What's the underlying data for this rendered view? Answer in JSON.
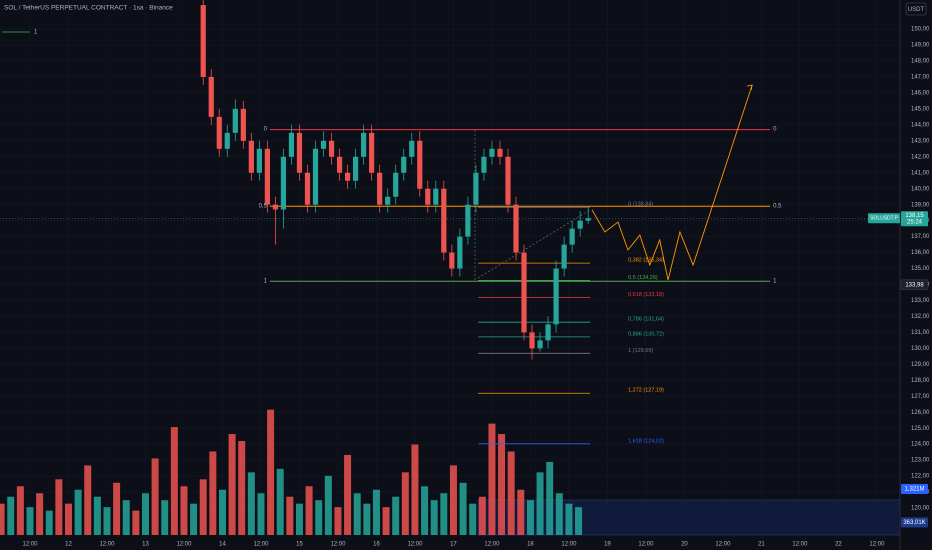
{
  "chart_data": {
    "type": "candlestick",
    "title": "SOL / TetherUS PERPETUAL CONTRACT · 1sa · Binance",
    "legend_label": "1",
    "legend_color": "#4caf50",
    "currency": "USDT",
    "up_color": "#26a69a",
    "down_color": "#ef5350",
    "grid": true,
    "xlim": [
      -9.35,
      271.2
    ],
    "ylim": [
      117.37,
      151.82
    ],
    "volume_ylim": [
      0,
      15.37
    ],
    "xticks": [
      {
        "value": 0,
        "label": "12:00"
      },
      {
        "value": 12,
        "label": "12"
      },
      {
        "value": 24,
        "label": "12:00"
      },
      {
        "value": 36,
        "label": "13"
      },
      {
        "value": 48,
        "label": "12:00"
      },
      {
        "value": 60,
        "label": "14"
      },
      {
        "value": 72,
        "label": "12:00"
      },
      {
        "value": 84,
        "label": "15"
      },
      {
        "value": 96,
        "label": "12:00"
      },
      {
        "value": 108,
        "label": "16"
      },
      {
        "value": 120,
        "label": "12:00"
      },
      {
        "value": 132,
        "label": "17"
      },
      {
        "value": 144,
        "label": "12:00"
      },
      {
        "value": 156,
        "label": "18"
      },
      {
        "value": 168,
        "label": "12:00"
      },
      {
        "value": 180,
        "label": "19"
      },
      {
        "value": 192,
        "label": "12:00"
      },
      {
        "value": 204,
        "label": "20"
      },
      {
        "value": 216,
        "label": "12:00"
      },
      {
        "value": 228,
        "label": "21"
      },
      {
        "value": 240,
        "label": "12:00"
      },
      {
        "value": 252,
        "label": "22"
      },
      {
        "value": 264,
        "label": "12:00"
      }
    ],
    "yticks": [
      {
        "value": 150,
        "label": "150,00"
      },
      {
        "value": 149,
        "label": "149,00"
      },
      {
        "value": 148,
        "label": "148,00"
      },
      {
        "value": 147,
        "label": "147,00"
      },
      {
        "value": 146,
        "label": "146,00"
      },
      {
        "value": 145,
        "label": "145,00"
      },
      {
        "value": 144,
        "label": "144,00"
      },
      {
        "value": 143,
        "label": "143,00"
      },
      {
        "value": 142,
        "label": "142,00"
      },
      {
        "value": 141,
        "label": "141,00"
      },
      {
        "value": 140,
        "label": "140,00"
      },
      {
        "value": 139,
        "label": "139,00"
      },
      {
        "value": 138,
        "label": "138,00"
      },
      {
        "value": 137,
        "label": "137,00"
      },
      {
        "value": 136,
        "label": "136,00"
      },
      {
        "value": 135,
        "label": "135,00"
      },
      {
        "value": 134,
        "label": "134,00"
      },
      {
        "value": 133,
        "label": "133,00"
      },
      {
        "value": 132,
        "label": "132,00"
      },
      {
        "value": 131,
        "label": "131,00"
      },
      {
        "value": 130,
        "label": "130,00"
      },
      {
        "value": 129,
        "label": "129,00"
      },
      {
        "value": 128,
        "label": "128,00"
      },
      {
        "value": 127,
        "label": "127,00"
      },
      {
        "value": 126,
        "label": "126,00"
      },
      {
        "value": 125,
        "label": "125,00"
      },
      {
        "value": 124,
        "label": "124,00"
      },
      {
        "value": 123,
        "label": "123,00"
      },
      {
        "value": 122,
        "label": "122,00"
      },
      {
        "value": 121,
        "label": "121,00"
      },
      {
        "value": 120,
        "label": "120,00"
      }
    ],
    "x": [
      54,
      56.5,
      59,
      61.5,
      64,
      66.5,
      69,
      71.5,
      74,
      76.5,
      79,
      81.5,
      84,
      86.5,
      89,
      91.5,
      94,
      96.5,
      99,
      101.5,
      104,
      106.5,
      109,
      111.5,
      114,
      116.5,
      119,
      121.5,
      124,
      126.5,
      129,
      131.5,
      134,
      136.5,
      139,
      141.5,
      144,
      146.5,
      149,
      151.5,
      154,
      156.5,
      159,
      161.5,
      164,
      166.5,
      169,
      171.5,
      174
    ],
    "open": [
      151.5,
      147,
      144.5,
      142.5,
      143.5,
      145,
      143,
      141,
      142.5,
      139,
      138.7,
      142,
      143.5,
      141,
      139,
      142.5,
      143,
      142,
      141,
      140.5,
      142,
      143.5,
      141,
      139,
      139.5,
      141,
      142,
      143,
      140,
      139,
      140,
      136,
      135,
      137,
      139,
      141,
      142,
      142.5,
      142,
      139,
      136,
      131,
      130,
      130.5,
      131.5,
      135,
      136.5,
      137.5,
      138
    ],
    "high": [
      152,
      147.5,
      145,
      144,
      145.6,
      145.5,
      143.5,
      143,
      143,
      139.5,
      142.5,
      144,
      144,
      141.5,
      143,
      143.6,
      143.5,
      142.5,
      141.5,
      142.5,
      144,
      144,
      141.5,
      140,
      141.5,
      142.5,
      143.5,
      143.6,
      140.5,
      140.5,
      140.5,
      136.5,
      137.5,
      139.5,
      141.5,
      142.5,
      143,
      143,
      142.5,
      139.5,
      136.5,
      131.5,
      131,
      132,
      135.5,
      137,
      138,
      138.6,
      138.8
    ],
    "low": [
      146.5,
      144,
      142,
      142,
      143,
      142.5,
      140.5,
      140.5,
      138.5,
      136.5,
      137.5,
      141.5,
      140.5,
      138.5,
      138.5,
      142,
      141.5,
      140.5,
      140,
      140,
      141.5,
      140.5,
      138.5,
      138.5,
      139,
      140.5,
      141.5,
      139.5,
      138.5,
      138.5,
      135.5,
      134.5,
      134.5,
      136.5,
      138.5,
      140.5,
      141.5,
      141.5,
      138.5,
      135.5,
      130.5,
      129.3,
      129.8,
      130,
      131,
      134.5,
      136,
      137,
      137.8
    ],
    "close": [
      147,
      144.5,
      142.5,
      143.5,
      145,
      143,
      141,
      142.5,
      139,
      138.7,
      142,
      143.5,
      141,
      139,
      142.5,
      143,
      142,
      141,
      140.5,
      142,
      143.5,
      141,
      139,
      139.5,
      141,
      142,
      143,
      140,
      139,
      140,
      136,
      135,
      137,
      139,
      141,
      142,
      142.5,
      142,
      139,
      136,
      131,
      130,
      130.5,
      131.5,
      135,
      136.5,
      137.5,
      138,
      138.15
    ],
    "volume": {
      "x": [
        -9,
        -6,
        -3,
        0,
        3,
        6,
        9,
        12,
        15,
        18,
        21,
        24,
        27,
        30,
        33,
        36,
        39,
        42,
        45,
        48,
        51,
        54,
        57,
        60,
        63,
        66,
        69,
        72,
        75,
        78,
        81,
        84,
        87,
        90,
        93,
        96,
        99,
        102,
        105,
        108,
        111,
        114,
        117,
        120,
        123,
        126,
        129,
        132,
        135,
        138,
        141,
        144,
        147,
        150,
        153,
        156,
        159,
        162,
        165,
        168,
        171
      ],
      "values": [
        0.9,
        1.1,
        1.4,
        0.8,
        1.2,
        0.7,
        1.6,
        0.9,
        1.3,
        2.0,
        1.1,
        0.8,
        1.5,
        1.0,
        0.7,
        1.2,
        2.2,
        1.0,
        3.1,
        1.4,
        0.9,
        1.6,
        2.4,
        1.3,
        2.9,
        2.7,
        1.8,
        1.2,
        3.6,
        1.9,
        1.1,
        0.9,
        1.4,
        1.0,
        1.7,
        0.8,
        2.3,
        1.2,
        0.9,
        1.3,
        0.8,
        1.1,
        1.8,
        2.6,
        1.4,
        1.0,
        1.2,
        2.0,
        1.5,
        0.9,
        1.1,
        3.2,
        2.9,
        2.4,
        1.3,
        1.0,
        1.8,
        2.1,
        1.2,
        0.9,
        0.8
      ],
      "colors": [
        "#ef5350",
        "#26a69a",
        "#ef5350",
        "#26a69a",
        "#ef5350",
        "#26a69a",
        "#ef5350",
        "#ef5350",
        "#26a69a",
        "#ef5350",
        "#26a69a",
        "#26a69a",
        "#ef5350",
        "#26a69a",
        "#ef5350",
        "#26a69a",
        "#ef5350",
        "#26a69a",
        "#ef5350",
        "#ef5350",
        "#26a69a",
        "#ef5350",
        "#ef5350",
        "#26a69a",
        "#ef5350",
        "#ef5350",
        "#26a69a",
        "#26a69a",
        "#ef5350",
        "#26a69a",
        "#ef5350",
        "#26a69a",
        "#ef5350",
        "#26a69a",
        "#26a69a",
        "#ef5350",
        "#ef5350",
        "#26a69a",
        "#26a69a",
        "#26a69a",
        "#ef5350",
        "#26a69a",
        "#ef5350",
        "#ef5350",
        "#26a69a",
        "#26a69a",
        "#26a69a",
        "#ef5350",
        "#26a69a",
        "#26a69a",
        "#ef5350",
        "#ef5350",
        "#ef5350",
        "#ef5350",
        "#ef5350",
        "#26a69a",
        "#26a69a",
        "#26a69a",
        "#26a69a",
        "#26a69a",
        "#26a69a"
      ]
    },
    "levels": [
      {
        "labels": [
          "0",
          "0"
        ],
        "price": 143.7,
        "color": "#f23645",
        "x": [
          74.8,
          230.7
        ]
      },
      {
        "labels": [
          "0,5",
          "0,5"
        ],
        "price": 138.9,
        "color": "#ff9800",
        "x": [
          74.8,
          230.7
        ]
      },
      {
        "labels": [
          "1",
          "1"
        ],
        "price": 134.2,
        "color": "#4caf50",
        "x": [
          74.8,
          230.7
        ]
      }
    ],
    "fib": {
      "x": [
        139.7,
        174.6
      ],
      "levels": [
        {
          "label": "0 (138,84)",
          "price": 138.84,
          "color": "#787b86"
        },
        {
          "label": "0,382 (135,34)",
          "price": 135.34,
          "color": "#ff9800"
        },
        {
          "label": "0,5 (134,26)",
          "price": 134.26,
          "color": "#4caf50"
        },
        {
          "label": "0,618 (133,18)",
          "price": 133.18,
          "color": "#f23645"
        },
        {
          "label": "0,786 (131,64)",
          "price": 131.64,
          "color": "#26a69a"
        },
        {
          "label": "0,886 (130,72)",
          "price": 130.72,
          "color": "#26a69a"
        },
        {
          "label": "1 (129,69)",
          "price": 129.69,
          "color": "#787b86"
        },
        {
          "label": "1,272 (127,19)",
          "price": 127.19,
          "color": "#ff9800"
        },
        {
          "label": "1,618 (124,02)",
          "price": 124.02,
          "color": "#2962ff"
        }
      ]
    },
    "projection": {
      "color": "#ff9800",
      "x": [
        175.2,
        179.2,
        183.3,
        186.4,
        190.1,
        193.2,
        196.3,
        198.9,
        202.6,
        206.7,
        225.1
      ],
      "y": [
        138.67,
        137.29,
        137.91,
        136.16,
        137.1,
        135.22,
        136.79,
        134.28,
        137.29,
        135.22,
        146.49
      ]
    },
    "price_badge": {
      "symbol": "SOLUSDT.P",
      "label": "138,15",
      "value": 138.15,
      "countdown": "25:24"
    },
    "level_badge": {
      "label": "133,98",
      "value": 133.98
    },
    "volume_badges": [
      {
        "label": "1,321M",
        "value": 1.321
      },
      {
        "label": "363,01K",
        "value": 0.36301
      }
    ]
  }
}
